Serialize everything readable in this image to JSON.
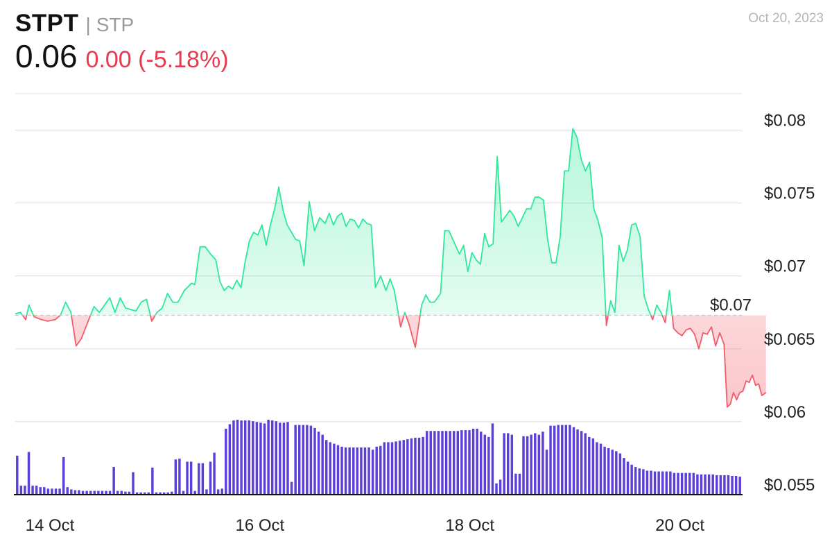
{
  "header": {
    "ticker": "STPT",
    "separator": "|",
    "subticker": "STP",
    "price": "0.06",
    "change": "0.00 (-5.18%)",
    "date": "Oct 20, 2023"
  },
  "colors": {
    "up": "#2ee89a",
    "down": "#f25c6a",
    "volume": "#5b3fd6",
    "grid": "#dcdcdc"
  },
  "chart_data": {
    "type": "line",
    "reference_price": 0.0673,
    "reference_label": "$0.07",
    "ylim": [
      0.055,
      0.0825
    ],
    "y_ticks": [
      0.055,
      0.06,
      0.065,
      0.07,
      0.075,
      0.08
    ],
    "y_tick_labels": [
      "$0.055",
      "$0.06",
      "$0.065",
      "$0.07",
      "$0.075",
      "$0.08"
    ],
    "x_range": [
      13.67,
      20.59
    ],
    "x_ticks": [
      14,
      16,
      18,
      20
    ],
    "x_tick_labels": [
      "14 Oct",
      "16 Oct",
      "18 Oct",
      "20 Oct"
    ],
    "price_series": [
      [
        13.67,
        0.0674
      ],
      [
        13.72,
        0.0675
      ],
      [
        13.77,
        0.067
      ],
      [
        13.8,
        0.068
      ],
      [
        13.85,
        0.0672
      ],
      [
        13.92,
        0.067
      ],
      [
        13.98,
        0.0669
      ],
      [
        14.05,
        0.067
      ],
      [
        14.1,
        0.0673
      ],
      [
        14.15,
        0.0682
      ],
      [
        14.2,
        0.0675
      ],
      [
        14.25,
        0.0652
      ],
      [
        14.3,
        0.0657
      ],
      [
        14.37,
        0.067
      ],
      [
        14.42,
        0.0679
      ],
      [
        14.47,
        0.0675
      ],
      [
        14.52,
        0.068
      ],
      [
        14.57,
        0.0685
      ],
      [
        14.62,
        0.0675
      ],
      [
        14.67,
        0.0685
      ],
      [
        14.72,
        0.0678
      ],
      [
        14.77,
        0.0677
      ],
      [
        14.82,
        0.0676
      ],
      [
        14.87,
        0.0682
      ],
      [
        14.92,
        0.0684
      ],
      [
        14.97,
        0.0669
      ],
      [
        15.02,
        0.0675
      ],
      [
        15.07,
        0.0678
      ],
      [
        15.12,
        0.0688
      ],
      [
        15.17,
        0.0682
      ],
      [
        15.22,
        0.0682
      ],
      [
        15.28,
        0.069
      ],
      [
        15.35,
        0.0695
      ],
      [
        15.38,
        0.0694
      ],
      [
        15.43,
        0.072
      ],
      [
        15.48,
        0.072
      ],
      [
        15.53,
        0.0715
      ],
      [
        15.58,
        0.0711
      ],
      [
        15.62,
        0.0696
      ],
      [
        15.66,
        0.069
      ],
      [
        15.7,
        0.0693
      ],
      [
        15.74,
        0.0691
      ],
      [
        15.78,
        0.0697
      ],
      [
        15.82,
        0.0692
      ],
      [
        15.86,
        0.071
      ],
      [
        15.9,
        0.0724
      ],
      [
        15.94,
        0.073
      ],
      [
        15.98,
        0.0728
      ],
      [
        16.02,
        0.0735
      ],
      [
        16.06,
        0.0721
      ],
      [
        16.1,
        0.0735
      ],
      [
        16.14,
        0.0746
      ],
      [
        16.18,
        0.0761
      ],
      [
        16.22,
        0.0745
      ],
      [
        16.26,
        0.0735
      ],
      [
        16.3,
        0.073
      ],
      [
        16.34,
        0.0725
      ],
      [
        16.38,
        0.0724
      ],
      [
        16.42,
        0.0707
      ],
      [
        16.47,
        0.0751
      ],
      [
        16.52,
        0.0731
      ],
      [
        16.57,
        0.074
      ],
      [
        16.62,
        0.0736
      ],
      [
        16.66,
        0.0743
      ],
      [
        16.7,
        0.0735
      ],
      [
        16.74,
        0.0741
      ],
      [
        16.78,
        0.0743
      ],
      [
        16.82,
        0.0734
      ],
      [
        16.86,
        0.0739
      ],
      [
        16.9,
        0.0738
      ],
      [
        16.94,
        0.0733
      ],
      [
        16.98,
        0.0739
      ],
      [
        17.02,
        0.0736
      ],
      [
        17.06,
        0.0735
      ],
      [
        17.1,
        0.0692
      ],
      [
        17.15,
        0.07
      ],
      [
        17.2,
        0.069
      ],
      [
        17.24,
        0.0698
      ],
      [
        17.28,
        0.069
      ],
      [
        17.34,
        0.0665
      ],
      [
        17.38,
        0.0675
      ],
      [
        17.42,
        0.0667
      ],
      [
        17.48,
        0.0651
      ],
      [
        17.54,
        0.068
      ],
      [
        17.58,
        0.0687
      ],
      [
        17.62,
        0.0682
      ],
      [
        17.66,
        0.0682
      ],
      [
        17.72,
        0.0688
      ],
      [
        17.76,
        0.0731
      ],
      [
        17.8,
        0.0731
      ],
      [
        17.85,
        0.0723
      ],
      [
        17.9,
        0.0715
      ],
      [
        17.94,
        0.0721
      ],
      [
        17.98,
        0.0703
      ],
      [
        18.02,
        0.0716
      ],
      [
        18.06,
        0.0711
      ],
      [
        18.1,
        0.0708
      ],
      [
        18.14,
        0.0729
      ],
      [
        18.18,
        0.072
      ],
      [
        18.22,
        0.0722
      ],
      [
        18.26,
        0.0782
      ],
      [
        18.3,
        0.0737
      ],
      [
        18.34,
        0.0741
      ],
      [
        18.38,
        0.0745
      ],
      [
        18.42,
        0.0741
      ],
      [
        18.46,
        0.0734
      ],
      [
        18.5,
        0.074
      ],
      [
        18.54,
        0.0746
      ],
      [
        18.58,
        0.0746
      ],
      [
        18.62,
        0.0754
      ],
      [
        18.66,
        0.0754
      ],
      [
        18.7,
        0.0752
      ],
      [
        18.74,
        0.0725
      ],
      [
        18.78,
        0.0709
      ],
      [
        18.82,
        0.0709
      ],
      [
        18.86,
        0.0727
      ],
      [
        18.9,
        0.0772
      ],
      [
        18.94,
        0.0772
      ],
      [
        18.98,
        0.0801
      ],
      [
        19.02,
        0.0795
      ],
      [
        19.06,
        0.078
      ],
      [
        19.1,
        0.0772
      ],
      [
        19.14,
        0.0778
      ],
      [
        19.18,
        0.0746
      ],
      [
        19.22,
        0.0738
      ],
      [
        19.26,
        0.0726
      ],
      [
        19.3,
        0.0666
      ],
      [
        19.34,
        0.0683
      ],
      [
        19.38,
        0.0675
      ],
      [
        19.42,
        0.0721
      ],
      [
        19.46,
        0.071
      ],
      [
        19.5,
        0.0718
      ],
      [
        19.54,
        0.0735
      ],
      [
        19.58,
        0.0736
      ],
      [
        19.62,
        0.0727
      ],
      [
        19.66,
        0.0686
      ],
      [
        19.7,
        0.0677
      ],
      [
        19.74,
        0.067
      ],
      [
        19.78,
        0.068
      ],
      [
        19.82,
        0.0675
      ],
      [
        19.86,
        0.0668
      ],
      [
        19.9,
        0.069
      ],
      [
        19.94,
        0.0664
      ],
      [
        19.98,
        0.0661
      ],
      [
        20.02,
        0.0659
      ],
      [
        20.06,
        0.0663
      ],
      [
        20.1,
        0.0664
      ],
      [
        20.14,
        0.066
      ],
      [
        20.18,
        0.065
      ],
      [
        20.22,
        0.0661
      ],
      [
        20.26,
        0.066
      ],
      [
        20.3,
        0.0665
      ],
      [
        20.34,
        0.0652
      ],
      [
        20.38,
        0.0661
      ],
      [
        20.42,
        0.0653
      ],
      [
        20.45,
        0.061
      ],
      [
        20.48,
        0.0612
      ],
      [
        20.51,
        0.062
      ],
      [
        20.54,
        0.0615
      ],
      [
        20.57,
        0.062
      ],
      [
        20.6,
        0.0621
      ],
      [
        20.63,
        0.0628
      ],
      [
        20.66,
        0.0627
      ],
      [
        20.69,
        0.0632
      ],
      [
        20.72,
        0.0625
      ],
      [
        20.75,
        0.0626
      ],
      [
        20.78,
        0.0618
      ],
      [
        20.82,
        0.062
      ]
    ],
    "volume_scale_max": 1.0,
    "volume_values": [
      0.52,
      0.12,
      0.12,
      0.57,
      0.12,
      0.12,
      0.1,
      0.1,
      0.08,
      0.08,
      0.08,
      0.08,
      0.5,
      0.1,
      0.07,
      0.06,
      0.06,
      0.05,
      0.05,
      0.05,
      0.05,
      0.05,
      0.05,
      0.05,
      0.05,
      0.37,
      0.05,
      0.05,
      0.04,
      0.04,
      0.3,
      0.03,
      0.03,
      0.03,
      0.03,
      0.36,
      0.03,
      0.03,
      0.03,
      0.03,
      0.04,
      0.47,
      0.48,
      0.05,
      0.44,
      0.44,
      0.05,
      0.42,
      0.42,
      0.07,
      0.44,
      0.56,
      0.07,
      0.08,
      0.88,
      0.94,
      0.99,
      1.0,
      0.99,
      0.99,
      0.99,
      0.98,
      0.97,
      0.96,
      0.95,
      1.0,
      0.99,
      0.98,
      0.96,
      0.96,
      0.97,
      0.17,
      0.93,
      0.93,
      0.93,
      0.93,
      0.92,
      0.89,
      0.84,
      0.8,
      0.73,
      0.7,
      0.68,
      0.66,
      0.64,
      0.63,
      0.63,
      0.63,
      0.63,
      0.63,
      0.63,
      0.63,
      0.6,
      0.64,
      0.65,
      0.7,
      0.7,
      0.7,
      0.71,
      0.72,
      0.73,
      0.74,
      0.75,
      0.76,
      0.76,
      0.77,
      0.85,
      0.85,
      0.85,
      0.85,
      0.85,
      0.85,
      0.85,
      0.85,
      0.85,
      0.86,
      0.86,
      0.86,
      0.88,
      0.88,
      0.84,
      0.8,
      0.77,
      0.95,
      0.15,
      0.2,
      0.82,
      0.82,
      0.8,
      0.28,
      0.28,
      0.78,
      0.78,
      0.8,
      0.82,
      0.8,
      0.84,
      0.6,
      0.92,
      0.92,
      0.93,
      0.93,
      0.93,
      0.93,
      0.9,
      0.87,
      0.85,
      0.82,
      0.77,
      0.75,
      0.7,
      0.68,
      0.64,
      0.62,
      0.6,
      0.58,
      0.55,
      0.49,
      0.44,
      0.4,
      0.37,
      0.35,
      0.34,
      0.32,
      0.32,
      0.31,
      0.31,
      0.31,
      0.31,
      0.31,
      0.29,
      0.29,
      0.29,
      0.29,
      0.29,
      0.29,
      0.27,
      0.27,
      0.27,
      0.27,
      0.27,
      0.26,
      0.26,
      0.26,
      0.26,
      0.25,
      0.25,
      0.24
    ]
  }
}
